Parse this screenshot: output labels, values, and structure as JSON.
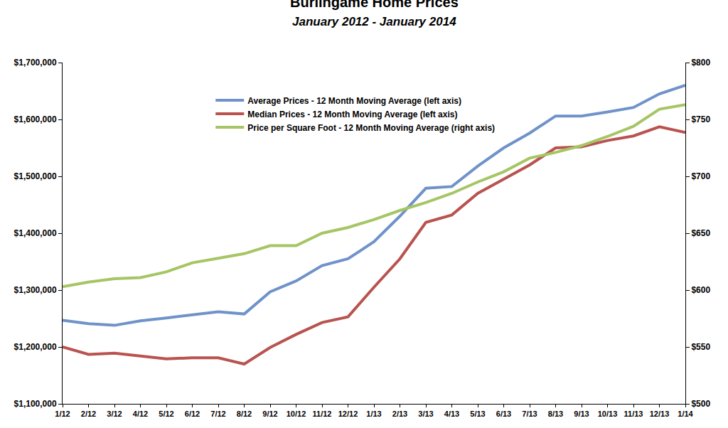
{
  "chart_data": {
    "type": "line",
    "title": "Burlingame Home Prices",
    "subtitle": "January 2012 - January 2014",
    "categories": [
      "1/12",
      "2/12",
      "3/12",
      "4/12",
      "5/12",
      "6/12",
      "7/12",
      "8/12",
      "9/12",
      "10/12",
      "11/12",
      "12/12",
      "1/13",
      "2/13",
      "3/13",
      "4/13",
      "5/13",
      "6/13",
      "7/13",
      "8/13",
      "9/13",
      "10/13",
      "11/13",
      "12/13",
      "1/14"
    ],
    "series": [
      {
        "name": "Average Prices - 12 Month Moving Average (left axis)",
        "color": "#6f93c9",
        "values": [
          1247000,
          1241000,
          1238000,
          1246000,
          1251000,
          1256000,
          1262000,
          1258000,
          1297000,
          1316000,
          1343000,
          1355000,
          1385000,
          1430000,
          1479000,
          1482000,
          1518000,
          1550000,
          1576000,
          1606000,
          1606000,
          1613000,
          1621000,
          1645000,
          1660000
        ]
      },
      {
        "name": "Median Prices - 12 Month Moving Average (left axis)",
        "color": "#b9534f",
        "values": [
          1200000,
          1187000,
          1189000,
          1184000,
          1179000,
          1181000,
          1181000,
          1170000,
          1199000,
          1222000,
          1243000,
          1253000,
          1305000,
          1355000,
          1419000,
          1432000,
          1470000,
          1495000,
          1520000,
          1550000,
          1552000,
          1563000,
          1571000,
          1587000,
          1577000
        ]
      },
      {
        "name": "Price per Square Foot - 12 Month Moving Average (right axis)",
        "color": "#a6c564",
        "axis": "y2",
        "values": [
          603,
          607,
          610,
          611,
          616,
          624,
          628,
          632,
          639,
          639,
          650,
          655,
          662,
          670,
          677,
          685,
          695,
          704,
          716,
          721,
          727,
          735,
          744,
          759,
          763
        ]
      }
    ],
    "ylim": [
      1100000,
      1700000
    ],
    "yticks": [
      {
        "value": 1100000,
        "label": "$1,100,000"
      },
      {
        "value": 1200000,
        "label": "$1,200,000"
      },
      {
        "value": 1300000,
        "label": "$1,300,000"
      },
      {
        "value": 1400000,
        "label": "$1,400,000"
      },
      {
        "value": 1500000,
        "label": "$1,500,000"
      },
      {
        "value": 1600000,
        "label": "$1,600,000"
      },
      {
        "value": 1700000,
        "label": "$1,700,000"
      }
    ],
    "y2lim": [
      500,
      800
    ],
    "y2ticks": [
      {
        "value": 500,
        "label": "$500"
      },
      {
        "value": 550,
        "label": "$550"
      },
      {
        "value": 600,
        "label": "$600"
      },
      {
        "value": 650,
        "label": "$650"
      },
      {
        "value": 700,
        "label": "$700"
      },
      {
        "value": 750,
        "label": "$750"
      },
      {
        "value": 800,
        "label": "$800"
      }
    ],
    "grid": false,
    "legend": "upper left"
  }
}
